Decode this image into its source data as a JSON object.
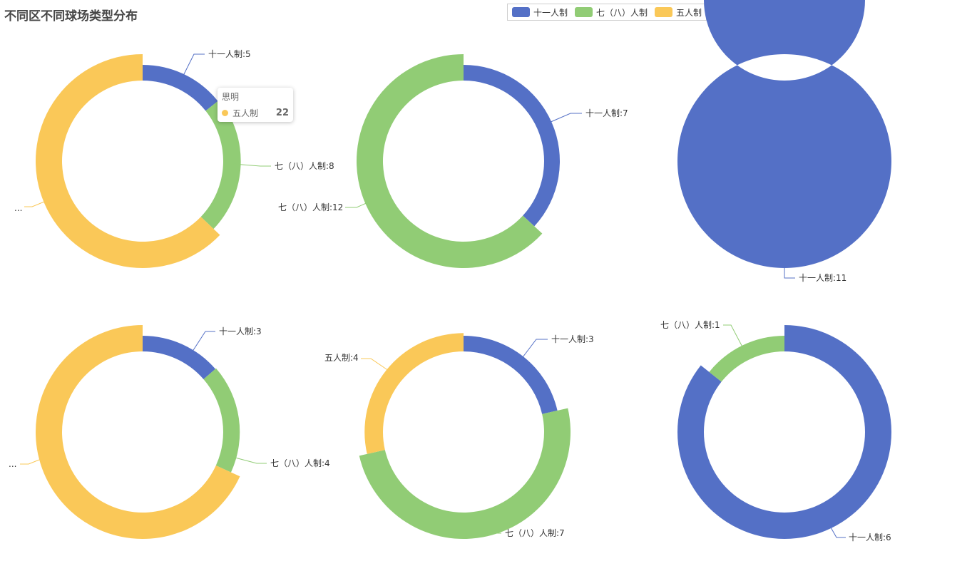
{
  "title": "不同区不同球场类型分布",
  "legend": [
    {
      "name": "十一人制",
      "color": "#5470c6"
    },
    {
      "name": "七（八）人制",
      "color": "#91cc75"
    },
    {
      "name": "五人制",
      "color": "#fac858"
    }
  ],
  "tooltip": {
    "title": "思明",
    "series": "五人制",
    "value": "22",
    "color": "#fac858"
  },
  "chart_data": [
    {
      "type": "pie",
      "name": "思明",
      "categories": [
        "十一人制",
        "七（八）人制",
        "五人制"
      ],
      "values": [
        5,
        8,
        22
      ],
      "labels": [
        {
          "text": "十一人制:5"
        },
        {
          "text": "七（八）人制:8"
        },
        {
          "text": "..."
        }
      ]
    },
    {
      "type": "pie",
      "categories": [
        "十一人制",
        "七（八）人制"
      ],
      "values": [
        7,
        12
      ],
      "labels": [
        {
          "text": "十一人制:7"
        },
        {
          "text": "七（八）人制:12"
        }
      ]
    },
    {
      "type": "pie",
      "categories": [
        "十一人制"
      ],
      "values": [
        11
      ],
      "labels": [
        {
          "text": "十一人制:11"
        }
      ]
    },
    {
      "type": "pie",
      "categories": [
        "十一人制",
        "七（八）人制",
        "五人制"
      ],
      "values": [
        3,
        4,
        15
      ],
      "labels": [
        {
          "text": "十一人制:3"
        },
        {
          "text": "七（八）人制:4"
        },
        {
          "text": "..."
        }
      ]
    },
    {
      "type": "pie",
      "categories": [
        "十一人制",
        "七（八）人制",
        "五人制"
      ],
      "values": [
        3,
        7,
        4
      ],
      "labels": [
        {
          "text": "十一人制:3"
        },
        {
          "text": "七（八）人制:7"
        },
        {
          "text": "五人制:4"
        }
      ]
    },
    {
      "type": "pie",
      "categories": [
        "十一人制",
        "七（八）人制"
      ],
      "values": [
        6,
        1
      ],
      "labels": [
        {
          "text": "十一人制:6"
        },
        {
          "text": "七（八）人制:1"
        }
      ]
    }
  ]
}
